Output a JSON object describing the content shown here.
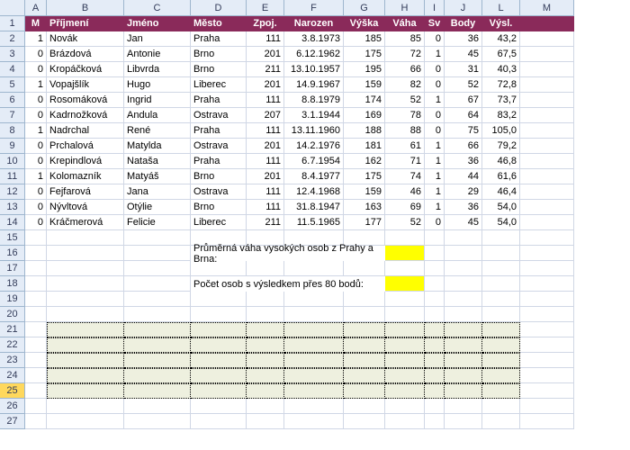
{
  "columns": {
    "letters": [
      "A",
      "B",
      "C",
      "D",
      "E",
      "F",
      "G",
      "H",
      "I",
      "J",
      "L",
      "M"
    ],
    "widths": [
      24,
      86,
      74,
      62,
      42,
      66,
      46,
      44,
      22,
      42,
      42,
      60
    ],
    "rowhdr_width": 28
  },
  "headers": [
    "M",
    "Příjmení",
    "Jméno",
    "Město",
    "Zpoj.",
    "Narozen",
    "Výška",
    "Váha",
    "Sv",
    "Body",
    "Výsl.",
    ""
  ],
  "rows": [
    {
      "n": "1",
      "d": [
        "1",
        "Novák",
        "Jan",
        "Praha",
        "111",
        "3.8.1973",
        "185",
        "85",
        "0",
        "36",
        "43,2"
      ]
    },
    {
      "n": "2",
      "d": [
        "0",
        "Brázdová",
        "Antonie",
        "Brno",
        "201",
        "6.12.1962",
        "175",
        "72",
        "1",
        "45",
        "67,5"
      ]
    },
    {
      "n": "3",
      "d": [
        "0",
        "Kropáčková",
        "Libvrda",
        "Brno",
        "211",
        "13.10.1957",
        "195",
        "66",
        "0",
        "31",
        "40,3"
      ]
    },
    {
      "n": "4",
      "d": [
        "1",
        "Vopajšlík",
        "Hugo",
        "Liberec",
        "201",
        "14.9.1967",
        "159",
        "82",
        "0",
        "52",
        "72,8"
      ]
    },
    {
      "n": "5",
      "d": [
        "0",
        "Rosomáková",
        "Ingrid",
        "Praha",
        "111",
        "8.8.1979",
        "174",
        "52",
        "1",
        "67",
        "73,7"
      ]
    },
    {
      "n": "6",
      "d": [
        "0",
        "Kadrnožková",
        "Andula",
        "Ostrava",
        "207",
        "3.1.1944",
        "169",
        "78",
        "0",
        "64",
        "83,2"
      ]
    },
    {
      "n": "7",
      "d": [
        "1",
        "Nadrchal",
        "René",
        "Praha",
        "111",
        "13.11.1960",
        "188",
        "88",
        "0",
        "75",
        "105,0"
      ]
    },
    {
      "n": "8",
      "d": [
        "0",
        "Prchalová",
        "Matylda",
        "Ostrava",
        "201",
        "14.2.1976",
        "181",
        "61",
        "1",
        "66",
        "79,2"
      ]
    },
    {
      "n": "9",
      "d": [
        "0",
        "Krepindlová",
        "Nataša",
        "Praha",
        "111",
        "6.7.1954",
        "162",
        "71",
        "1",
        "36",
        "46,8"
      ]
    },
    {
      "n": "10",
      "d": [
        "1",
        "Kolomazník",
        "Matyáš",
        "Brno",
        "201",
        "8.4.1977",
        "175",
        "74",
        "1",
        "44",
        "61,6"
      ]
    },
    {
      "n": "11",
      "d": [
        "0",
        "Fejfarová",
        "Jana",
        "Ostrava",
        "111",
        "12.4.1968",
        "159",
        "46",
        "1",
        "29",
        "46,4"
      ]
    },
    {
      "n": "12",
      "d": [
        "0",
        "Nývltová",
        "Otýlie",
        "Brno",
        "111",
        "31.8.1947",
        "163",
        "69",
        "1",
        "36",
        "54,0"
      ]
    },
    {
      "n": "13",
      "d": [
        "0",
        "Kráčmerová",
        "Felicie",
        "Liberec",
        "211",
        "11.5.1965",
        "177",
        "52",
        "0",
        "45",
        "54,0"
      ]
    }
  ],
  "notes": {
    "avg": "Průměrná váha vysokých osob z Prahy a Brna:",
    "count": "Počet osob s výsledkem přes 80 bodů:"
  },
  "align": [
    "r",
    "",
    "",
    "",
    "r",
    "r",
    "r",
    "r",
    "r",
    "r",
    "r",
    ""
  ],
  "row_numbers": [
    1,
    2,
    3,
    4,
    5,
    6,
    7,
    8,
    9,
    10,
    11,
    12,
    13,
    14,
    15,
    16,
    17,
    18,
    19,
    20,
    21,
    22,
    23,
    24,
    25,
    26,
    27
  ],
  "selected_row": 25,
  "shade_rows": [
    21,
    22,
    23,
    24,
    25
  ]
}
